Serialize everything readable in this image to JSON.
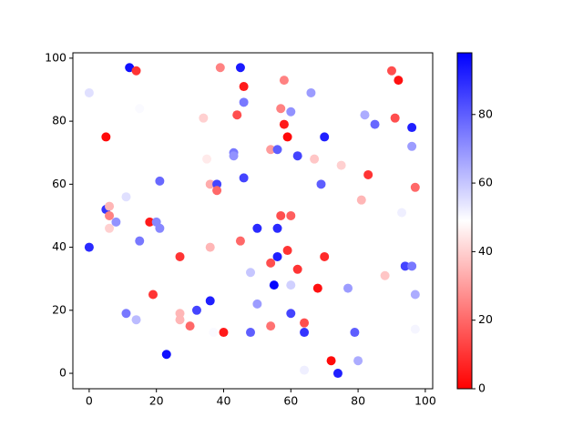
{
  "chart_data": {
    "type": "scatter",
    "x": [
      0,
      12,
      14,
      5,
      15,
      0,
      5,
      6,
      6,
      6,
      8,
      11,
      15,
      18,
      20,
      21,
      21,
      11,
      14,
      19,
      23,
      27,
      27,
      27,
      30,
      32,
      36,
      37,
      40,
      36,
      35,
      34,
      36,
      38,
      38,
      39,
      45,
      46,
      46,
      44,
      43,
      43,
      46,
      45,
      48,
      48,
      50,
      50,
      54,
      56,
      57,
      58,
      58,
      59,
      60,
      57,
      60,
      56,
      59,
      54,
      56,
      55,
      60,
      62,
      54,
      60,
      64,
      64,
      64,
      62,
      66,
      67,
      70,
      69,
      68,
      70,
      72,
      74,
      75,
      77,
      79,
      80,
      81,
      82,
      83,
      85,
      88,
      90,
      91,
      92,
      93,
      94,
      96,
      96,
      96,
      97,
      97,
      97
    ],
    "y": [
      89,
      97,
      96,
      75,
      84,
      40,
      52,
      53,
      50,
      46,
      48,
      56,
      42,
      48,
      48,
      46,
      61,
      19,
      17,
      25,
      6,
      37,
      19,
      17,
      15,
      20,
      23,
      13,
      13,
      40,
      68,
      81,
      60,
      60,
      58,
      97,
      97,
      91,
      86,
      82,
      70,
      69,
      62,
      42,
      32,
      13,
      46,
      22,
      71,
      71,
      84,
      93,
      79,
      75,
      83,
      50,
      50,
      46,
      39,
      35,
      37,
      28,
      28,
      33,
      15,
      19,
      16,
      13,
      1,
      69,
      89,
      68,
      75,
      60,
      27,
      37,
      4,
      0,
      66,
      27,
      13,
      4,
      55,
      82,
      63,
      79,
      31,
      96,
      81,
      93,
      51,
      34,
      78,
      72,
      34,
      59,
      25,
      14
    ],
    "c": [
      55,
      95,
      10,
      2,
      50,
      90,
      88,
      35,
      25,
      40,
      70,
      55,
      75,
      5,
      72,
      72,
      78,
      75,
      62,
      10,
      95,
      10,
      35,
      35,
      20,
      85,
      92,
      50,
      5,
      35,
      45,
      40,
      33,
      85,
      20,
      25,
      93,
      5,
      75,
      15,
      75,
      70,
      85,
      20,
      60,
      80,
      90,
      68,
      30,
      80,
      25,
      25,
      5,
      2,
      70,
      15,
      18,
      90,
      10,
      15,
      92,
      97,
      58,
      10,
      22,
      85,
      15,
      88,
      52,
      85,
      68,
      38,
      92,
      80,
      3,
      8,
      2,
      92,
      40,
      68,
      80,
      65,
      35,
      65,
      10,
      78,
      38,
      15,
      15,
      3,
      52,
      85,
      92,
      68,
      75,
      20,
      65,
      51
    ],
    "colormap": "bwr_r",
    "clim": [
      0,
      98
    ],
    "cticks": [
      0,
      20,
      40,
      60,
      80
    ],
    "xlim": [
      -4.85,
      102.2
    ],
    "ylim": [
      -4.9,
      101.7
    ],
    "xticks": [
      0,
      20,
      40,
      60,
      80,
      100
    ],
    "yticks": [
      0,
      20,
      40,
      60,
      80,
      100
    ]
  }
}
